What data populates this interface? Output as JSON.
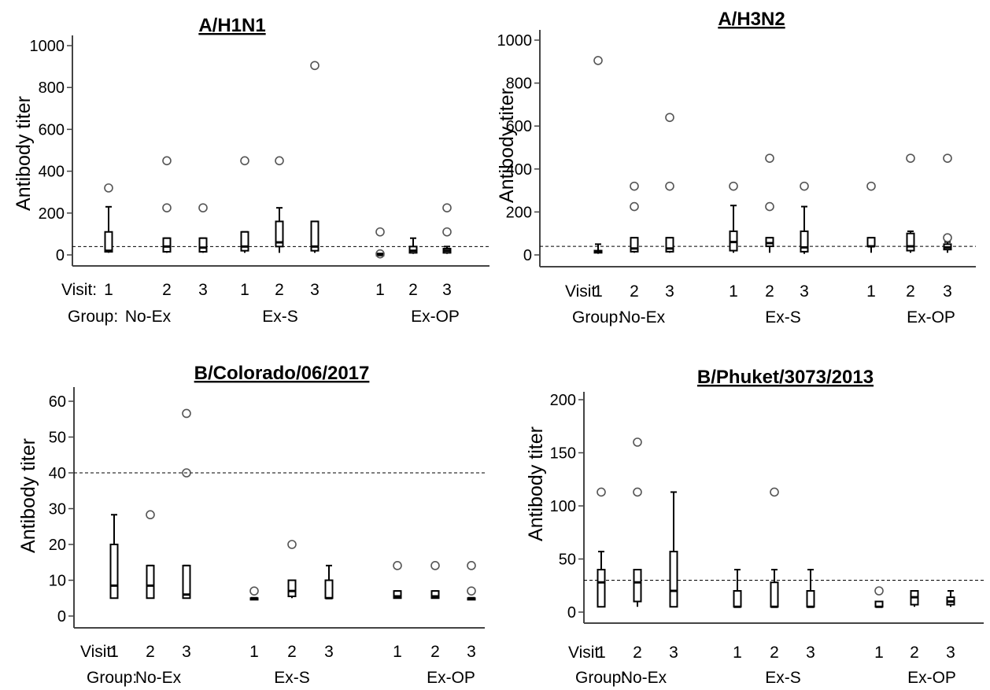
{
  "chart_data": [
    {
      "type": "boxplot",
      "title": "A/H1N1",
      "ylabel": "Antibody titer",
      "ylim": [
        -50,
        1000
      ],
      "yticks": [
        0,
        200,
        400,
        600,
        800,
        1000
      ],
      "threshold": 40,
      "x_label_visit": "Visit:",
      "x_label_group": "Group:",
      "visits": [
        "1",
        "2",
        "3",
        "1",
        "2",
        "3",
        "1",
        "2",
        "3"
      ],
      "groups": [
        "No-Ex",
        "Ex-S",
        "Ex-OP"
      ],
      "boxes": [
        {
          "min": 10,
          "q1": 15,
          "median": 20,
          "q3": 110,
          "max": 230,
          "outliers": [
            320
          ]
        },
        {
          "min": 10,
          "q1": 15,
          "median": 40,
          "q3": 80,
          "max": 80,
          "outliers": [
            225,
            450
          ]
        },
        {
          "min": 10,
          "q1": 15,
          "median": 35,
          "q3": 80,
          "max": 80,
          "outliers": [
            225
          ]
        },
        {
          "min": 10,
          "q1": 20,
          "median": 40,
          "q3": 110,
          "max": 110,
          "outliers": [
            450
          ]
        },
        {
          "min": 10,
          "q1": 40,
          "median": 60,
          "q3": 160,
          "max": 225,
          "outliers": [
            450
          ]
        },
        {
          "min": 10,
          "q1": 20,
          "median": 40,
          "q3": 160,
          "max": 160,
          "outliers": [
            905
          ]
        },
        {
          "min": 5,
          "q1": 5,
          "median": 5,
          "q3": 5,
          "max": 5,
          "outliers": [
            5,
            110
          ]
        },
        {
          "min": 5,
          "q1": 10,
          "median": 20,
          "q3": 40,
          "max": 80,
          "outliers": []
        },
        {
          "min": 5,
          "q1": 10,
          "median": 20,
          "q3": 30,
          "max": 40,
          "outliers": [
            110,
            225
          ]
        }
      ]
    },
    {
      "type": "boxplot",
      "title": "A/H3N2",
      "ylabel": "Antibody titer",
      "ylim": [
        -50,
        1000
      ],
      "yticks": [
        0,
        200,
        400,
        600,
        800,
        1000
      ],
      "threshold": 40,
      "x_label_visit": "Visit:",
      "x_label_group": "Group:",
      "visits": [
        "1",
        "2",
        "3",
        "1",
        "2",
        "3",
        "1",
        "2",
        "3"
      ],
      "groups": [
        "No-Ex",
        "Ex-S",
        "Ex-OP"
      ],
      "boxes": [
        {
          "min": 5,
          "q1": 10,
          "median": 15,
          "q3": 20,
          "max": 50,
          "outliers": [
            905
          ]
        },
        {
          "min": 10,
          "q1": 15,
          "median": 30,
          "q3": 80,
          "max": 80,
          "outliers": [
            225,
            320
          ]
        },
        {
          "min": 10,
          "q1": 15,
          "median": 30,
          "q3": 80,
          "max": 80,
          "outliers": [
            320,
            640
          ]
        },
        {
          "min": 10,
          "q1": 20,
          "median": 60,
          "q3": 110,
          "max": 230,
          "outliers": [
            320
          ]
        },
        {
          "min": 10,
          "q1": 40,
          "median": 55,
          "q3": 80,
          "max": 80,
          "outliers": [
            225,
            450
          ]
        },
        {
          "min": 5,
          "q1": 15,
          "median": 35,
          "q3": 110,
          "max": 225,
          "outliers": [
            320
          ]
        },
        {
          "min": 10,
          "q1": 40,
          "median": 40,
          "q3": 80,
          "max": 80,
          "outliers": [
            320
          ]
        },
        {
          "min": 10,
          "q1": 20,
          "median": 40,
          "q3": 100,
          "max": 110,
          "outliers": [
            450
          ]
        },
        {
          "min": 10,
          "q1": 25,
          "median": 35,
          "q3": 50,
          "max": 60,
          "outliers": [
            80,
            450
          ]
        }
      ]
    },
    {
      "type": "boxplot",
      "title": "B/Colorado/06/2017",
      "ylabel": "Antibody titer",
      "ylim": [
        -3,
        63
      ],
      "yticks": [
        0,
        10,
        20,
        30,
        40,
        50,
        60
      ],
      "threshold": 40,
      "x_label_visit": "Visit:",
      "x_label_group": "Group:",
      "visits": [
        "1",
        "2",
        "3",
        "1",
        "2",
        "3",
        "1",
        "2",
        "3"
      ],
      "groups": [
        "No-Ex",
        "Ex-S",
        "Ex-OP"
      ],
      "boxes": [
        {
          "min": 5,
          "q1": 5,
          "median": 8.5,
          "q3": 20,
          "max": 28.3,
          "outliers": []
        },
        {
          "min": 5,
          "q1": 5,
          "median": 8.5,
          "q3": 14.1,
          "max": 14.1,
          "outliers": [
            28.3
          ]
        },
        {
          "min": 5,
          "q1": 5,
          "median": 6,
          "q3": 14.1,
          "max": 14.1,
          "outliers": [
            40,
            56.6
          ]
        },
        {
          "min": 5,
          "q1": 5,
          "median": 5,
          "q3": 5,
          "max": 5,
          "outliers": [
            7
          ]
        },
        {
          "min": 5,
          "q1": 5.5,
          "median": 7,
          "q3": 10,
          "max": 10,
          "outliers": [
            20
          ]
        },
        {
          "min": 5,
          "q1": 5,
          "median": 5,
          "q3": 10,
          "max": 14.1,
          "outliers": []
        },
        {
          "min": 5,
          "q1": 5,
          "median": 5.5,
          "q3": 7,
          "max": 7,
          "outliers": [
            14.1
          ]
        },
        {
          "min": 5,
          "q1": 5,
          "median": 5.5,
          "q3": 7,
          "max": 7,
          "outliers": [
            14.1
          ]
        },
        {
          "min": 5,
          "q1": 5,
          "median": 5,
          "q3": 5,
          "max": 5,
          "outliers": [
            7,
            14.1
          ]
        }
      ]
    },
    {
      "type": "boxplot",
      "title": "B/Phuket/3073/2013",
      "ylabel": "Antibody titer",
      "ylim": [
        -10,
        210
      ],
      "yticks": [
        0,
        50,
        100,
        150,
        200
      ],
      "threshold": 30,
      "x_label_visit": "Visit:",
      "x_label_group": "Group:",
      "visits": [
        "1",
        "2",
        "3",
        "1",
        "2",
        "3",
        "1",
        "2",
        "3"
      ],
      "groups": [
        "No-Ex",
        "Ex-S",
        "Ex-OP"
      ],
      "boxes": [
        {
          "min": 5,
          "q1": 5,
          "median": 28,
          "q3": 40,
          "max": 57,
          "outliers": [
            113
          ]
        },
        {
          "min": 5,
          "q1": 10,
          "median": 28,
          "q3": 40,
          "max": 40,
          "outliers": [
            113,
            160
          ]
        },
        {
          "min": 5,
          "q1": 5,
          "median": 20,
          "q3": 57,
          "max": 113,
          "outliers": []
        },
        {
          "min": 5,
          "q1": 5,
          "median": 5,
          "q3": 20,
          "max": 40,
          "outliers": []
        },
        {
          "min": 5,
          "q1": 5,
          "median": 5,
          "q3": 28,
          "max": 40,
          "outliers": [
            113
          ]
        },
        {
          "min": 5,
          "q1": 5,
          "median": 5,
          "q3": 20,
          "max": 40,
          "outliers": []
        },
        {
          "min": 5,
          "q1": 5,
          "median": 5,
          "q3": 10,
          "max": 10,
          "outliers": [
            20
          ]
        },
        {
          "min": 5,
          "q1": 7,
          "median": 14,
          "q3": 20,
          "max": 20,
          "outliers": []
        },
        {
          "min": 5,
          "q1": 7,
          "median": 10,
          "q3": 14,
          "max": 20,
          "outliers": []
        }
      ]
    }
  ]
}
